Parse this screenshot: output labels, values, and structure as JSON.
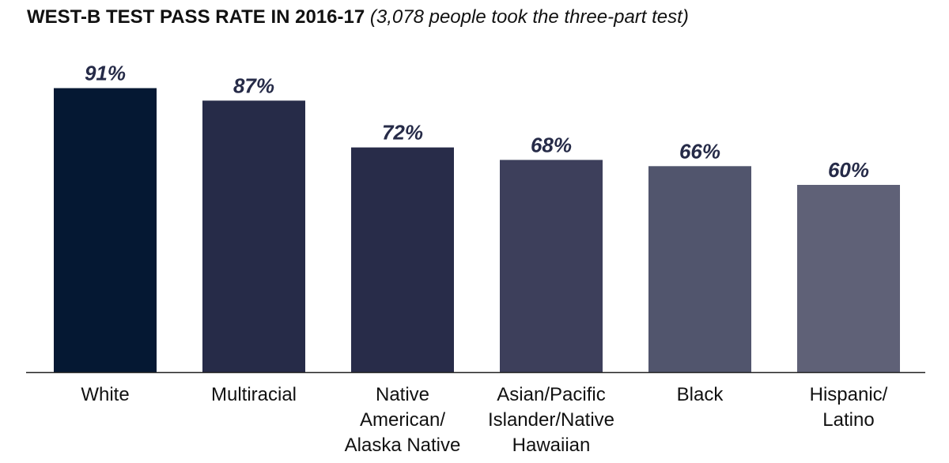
{
  "title": {
    "main": "WEST-B TEST PASS RATE IN 2016-17",
    "sub": "(3,078 people took the three-part test)"
  },
  "chart_data": {
    "type": "bar",
    "categories": [
      "White",
      "Multiracial",
      "Native American/ Alaska Native",
      "Asian/Pacific Islander/Native Hawaiian",
      "Black",
      "Hispanic/ Latino"
    ],
    "category_lines": [
      [
        "White"
      ],
      [
        "Multiracial"
      ],
      [
        "Native",
        "American/",
        "Alaska Native"
      ],
      [
        "Asian/Pacific",
        "Islander/Native",
        "Hawaiian"
      ],
      [
        "Black"
      ],
      [
        "Hispanic/",
        "Latino"
      ]
    ],
    "values": [
      91,
      87,
      72,
      68,
      66,
      60
    ],
    "value_labels": [
      "91%",
      "87%",
      "72%",
      "68%",
      "66%",
      "60%"
    ],
    "ylim": [
      0,
      100
    ],
    "grid": false,
    "colors": [
      "#051833",
      "#262b48",
      "#282c49",
      "#3d3f5b",
      "#51556d",
      "#5f6177"
    ],
    "label_color": "#262b48"
  }
}
